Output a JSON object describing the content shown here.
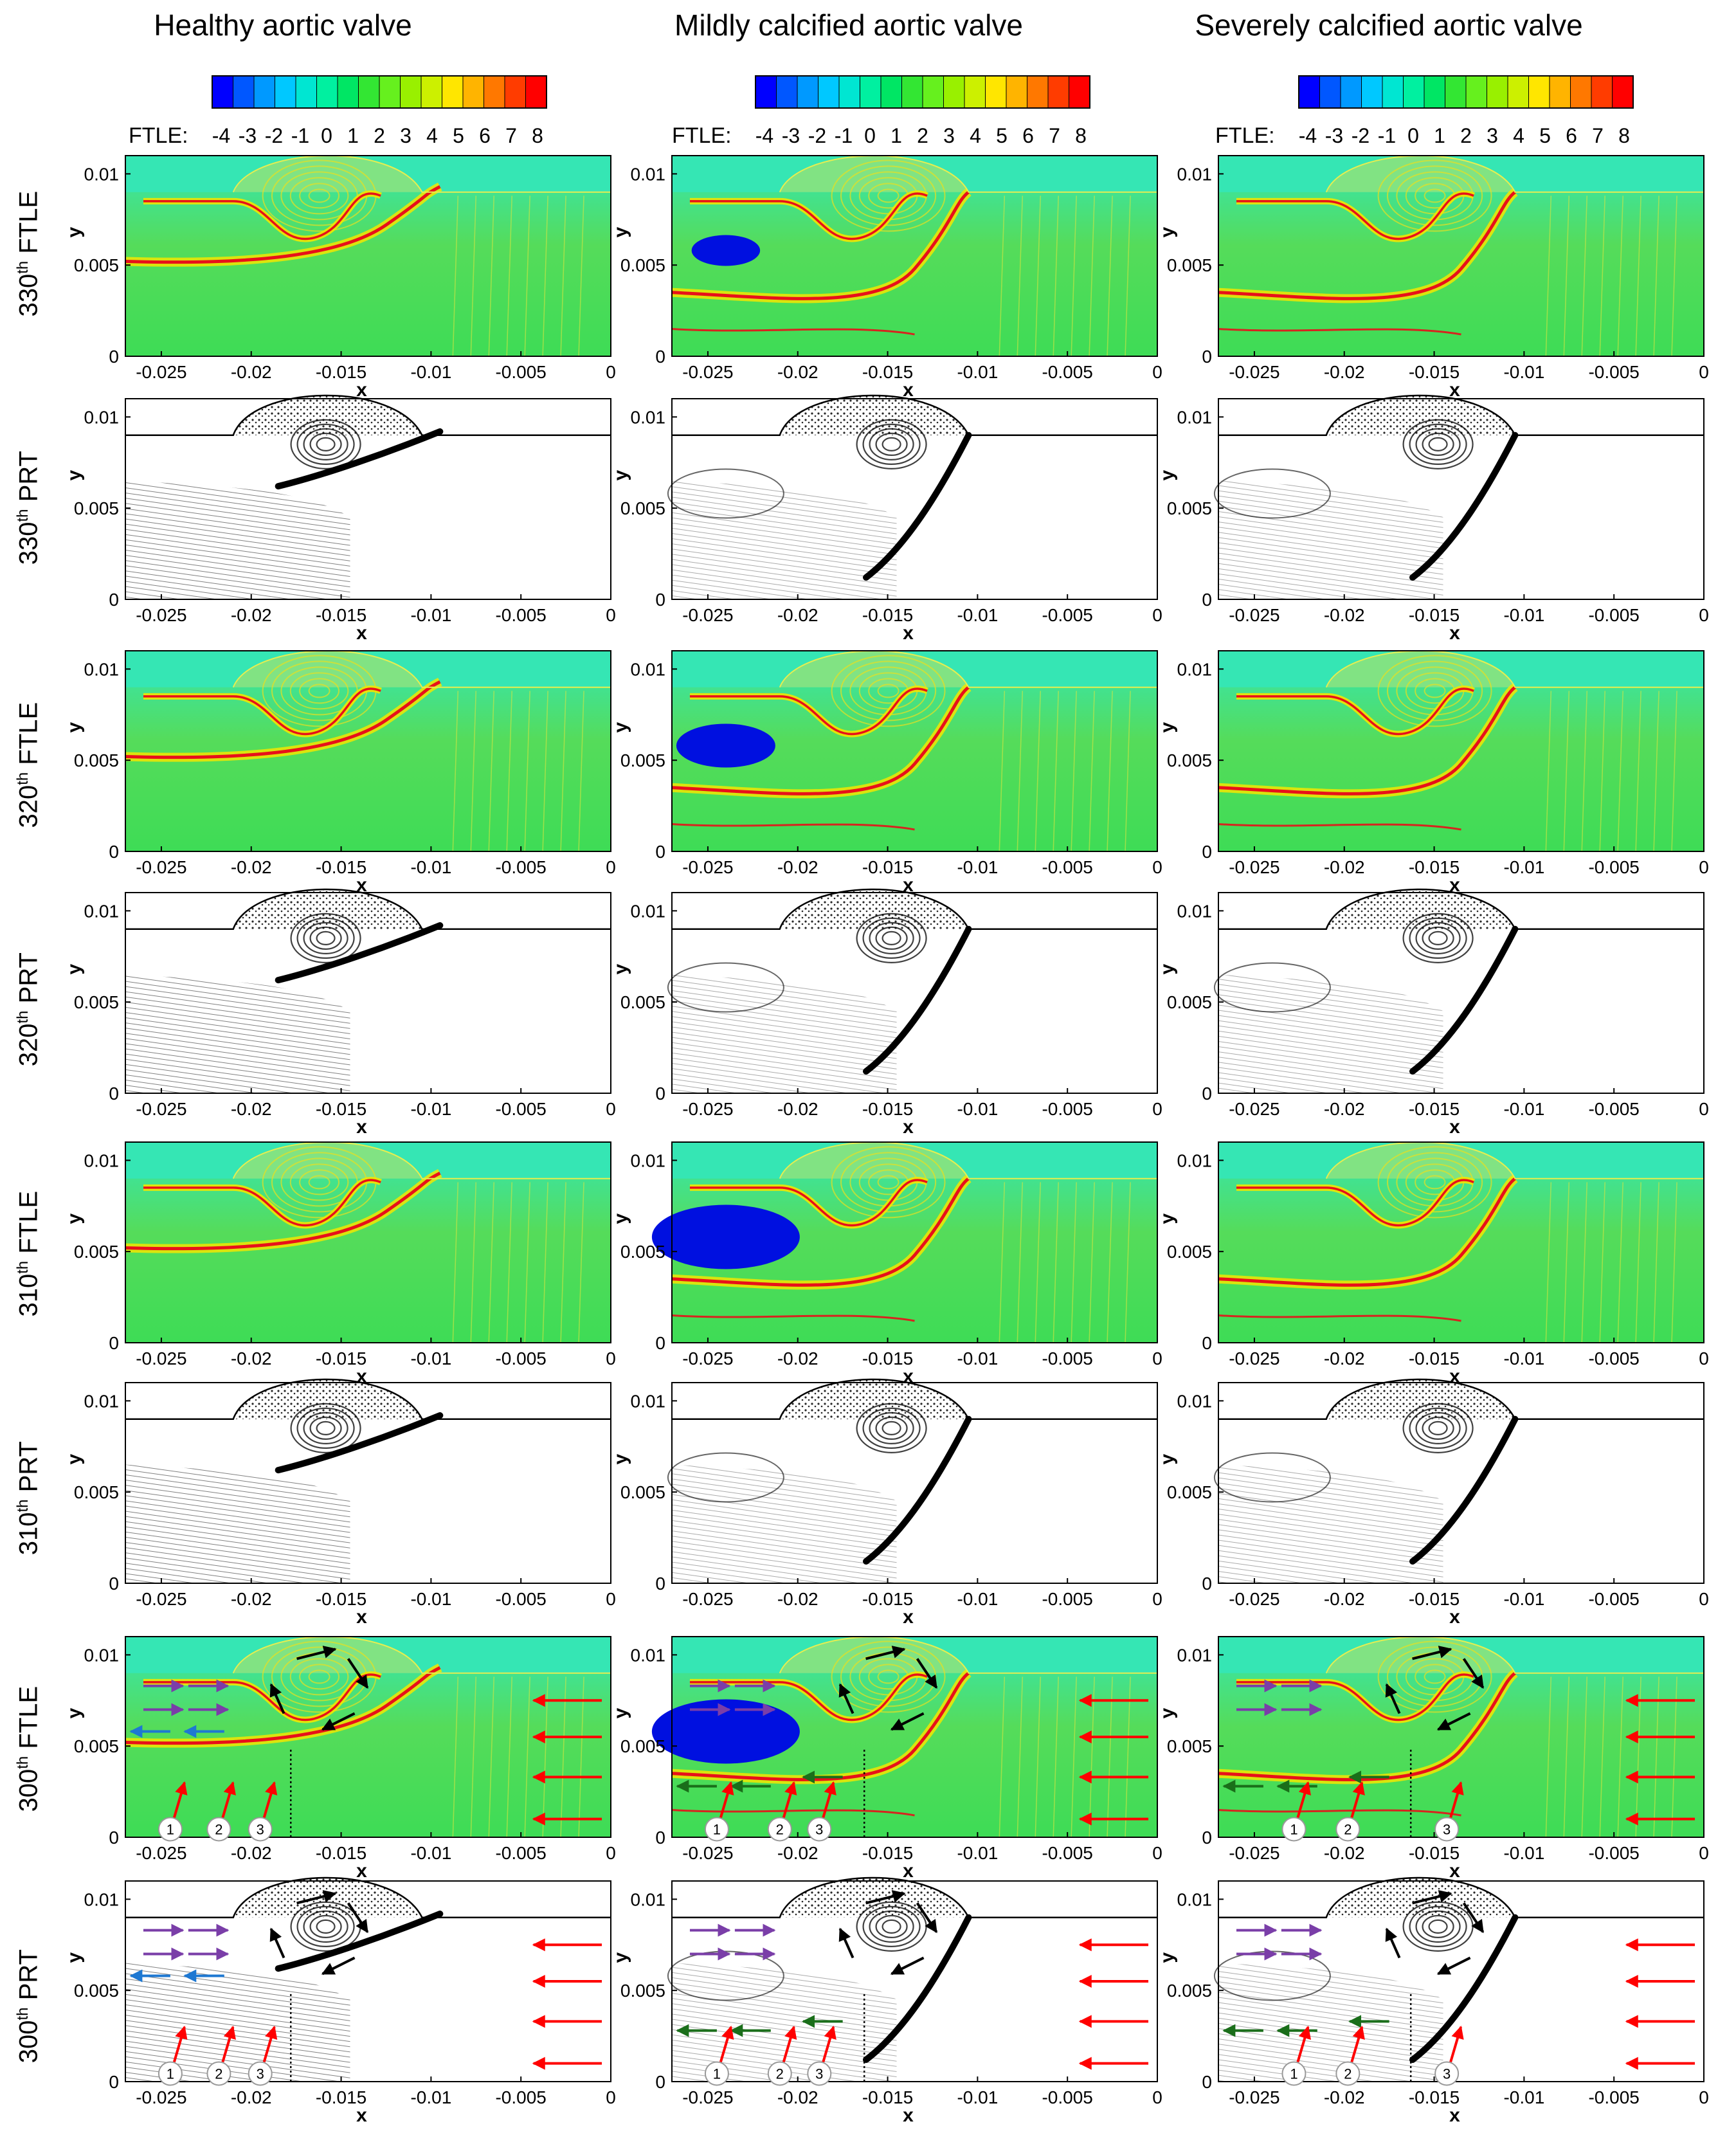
{
  "columns": [
    {
      "title": "Healthy aortic valve"
    },
    {
      "title": "Mildly calcified aortic valve"
    },
    {
      "title": "Severely calcified aortic valve"
    }
  ],
  "colorbar": {
    "label": "FTLE:",
    "ticks": [
      "-4",
      "-3",
      "-2",
      "-1",
      "0",
      "1",
      "2",
      "3",
      "4",
      "5",
      "6",
      "7",
      "8"
    ],
    "colors": [
      "#0000ff",
      "#0057ff",
      "#0099ff",
      "#00c8ff",
      "#00e6d2",
      "#00f0a0",
      "#00e664",
      "#33e633",
      "#66f01e",
      "#99f000",
      "#ccf000",
      "#ffe600",
      "#ffb400",
      "#ff7800",
      "#ff3c00",
      "#ff0000"
    ]
  },
  "rows": [
    {
      "num": "330",
      "sup": "th",
      "kind": "FTLE"
    },
    {
      "num": "330",
      "sup": "th",
      "kind": "PRT"
    },
    {
      "num": "320",
      "sup": "th",
      "kind": "FTLE"
    },
    {
      "num": "320",
      "sup": "th",
      "kind": "PRT"
    },
    {
      "num": "310",
      "sup": "th",
      "kind": "FTLE"
    },
    {
      "num": "310",
      "sup": "th",
      "kind": "PRT"
    },
    {
      "num": "300",
      "sup": "th",
      "kind": "FTLE"
    },
    {
      "num": "300",
      "sup": "th",
      "kind": "PRT"
    }
  ],
  "axes": {
    "xlabel": "x",
    "ylabel": "y",
    "xticks": [
      "-0.025",
      "-0.02",
      "-0.015",
      "-0.01",
      "-0.005",
      "0"
    ],
    "xtick_values": [
      -0.025,
      -0.02,
      -0.015,
      -0.01,
      -0.005,
      0
    ],
    "yticks": [
      "0",
      "0.005",
      "0.01"
    ],
    "ytick_values": [
      0,
      0.005,
      0.01
    ],
    "xlim": [
      -0.027,
      0
    ],
    "ylim": [
      0,
      0.011
    ]
  },
  "markers": [
    "1",
    "2",
    "3"
  ],
  "palette": {
    "background_field": "#35e6b4",
    "field_green": "#5ad84a",
    "ridge": "#e8101a",
    "ridge_halo": "#f2e600",
    "vortex_blue": "#0010e0",
    "arrow_red": "#ff0000",
    "arrow_black": "#000000",
    "arrow_blue": "#1e78d2",
    "arrow_purple": "#7a3ea8",
    "arrow_green": "#1a6e1a"
  }
}
